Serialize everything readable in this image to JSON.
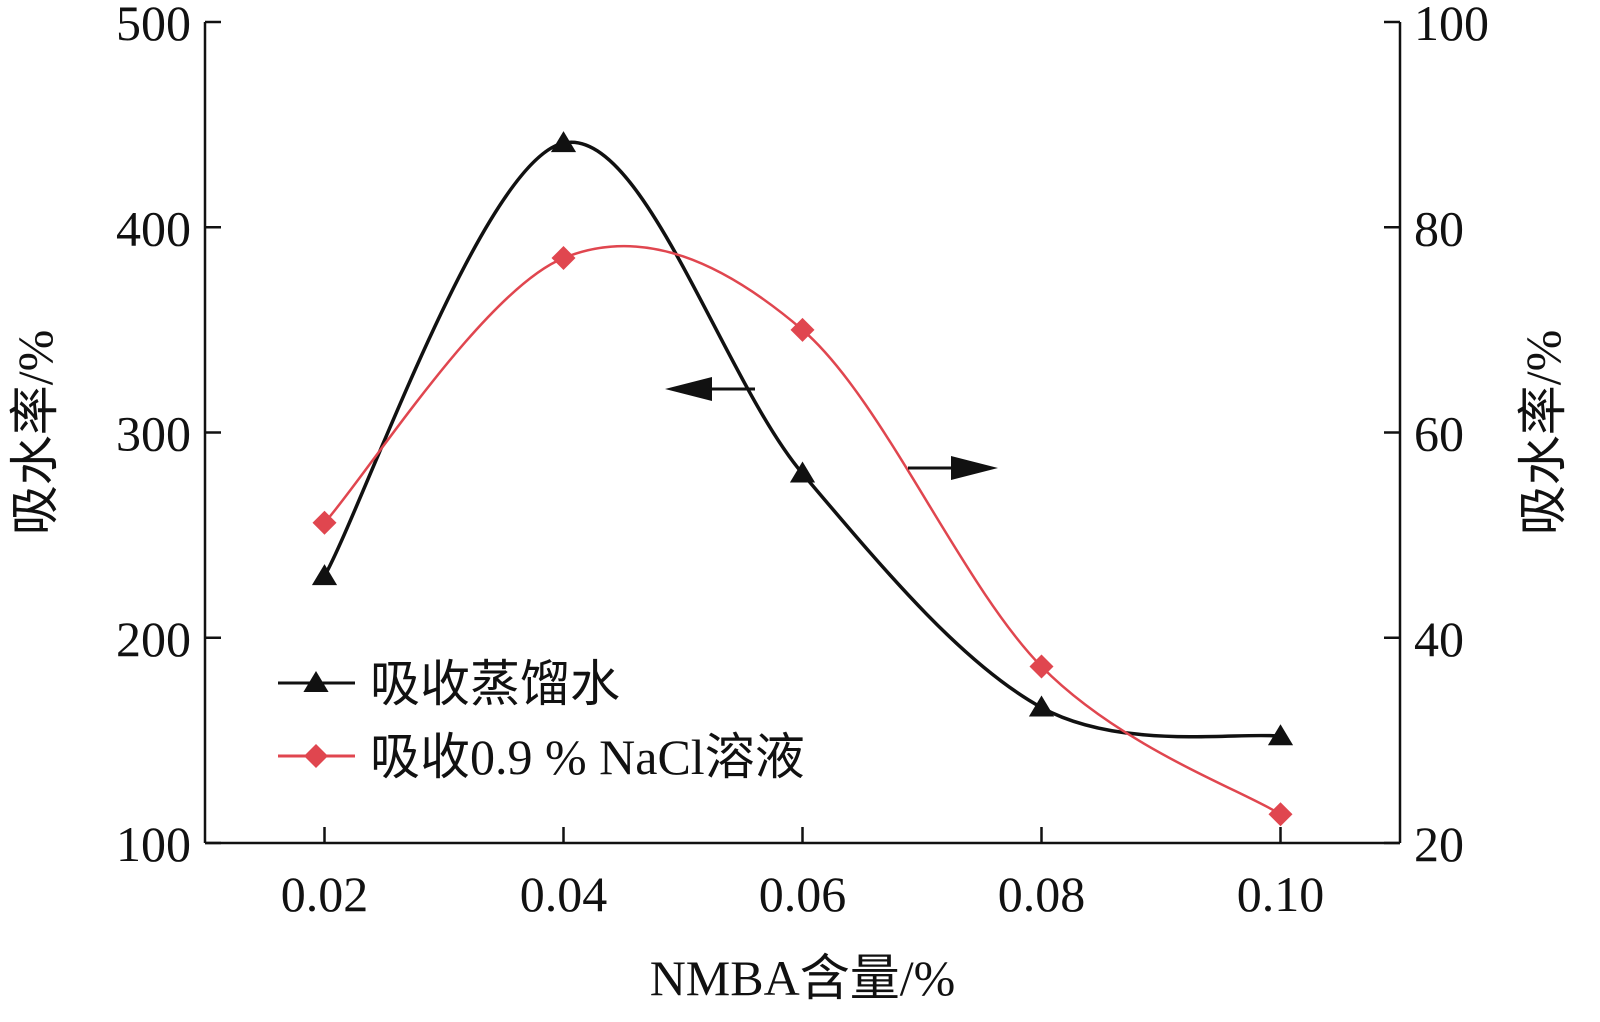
{
  "chart_data": {
    "type": "line",
    "xlabel": "NMBA含量/%",
    "ylabel_left": "吸水率/%",
    "ylabel_right": "吸水率/%",
    "x": [
      0.02,
      0.04,
      0.06,
      0.08,
      0.1
    ],
    "x_tick_labels": [
      "0.02",
      "0.04",
      "0.06",
      "0.08",
      "0.10"
    ],
    "xlim": [
      0.01,
      0.11
    ],
    "ylim_left": [
      100,
      500
    ],
    "ylim_right": [
      20,
      100
    ],
    "y_ticks_left": [
      100,
      200,
      300,
      400,
      500
    ],
    "y_ticks_right": [
      20,
      40,
      60,
      80,
      100
    ],
    "grid": false,
    "legend_position": "bottom-left",
    "series": [
      {
        "name": "吸收蒸馏水",
        "axis": "left",
        "color": "#111111",
        "marker": "triangle",
        "values": [
          230,
          441,
          280,
          166,
          152
        ]
      },
      {
        "name": "吸收0.9 % NaCl溶液",
        "axis": "right",
        "color": "#e0464f",
        "marker": "diamond",
        "values": [
          51.2,
          77,
          70,
          37.2,
          22.8
        ]
      }
    ],
    "annotations": [
      {
        "type": "arrow",
        "direction": "left",
        "meaning": "吸收蒸馏水 → left axis"
      },
      {
        "type": "arrow",
        "direction": "right",
        "meaning": "吸收0.9 % NaCl溶液 → right axis"
      }
    ]
  }
}
